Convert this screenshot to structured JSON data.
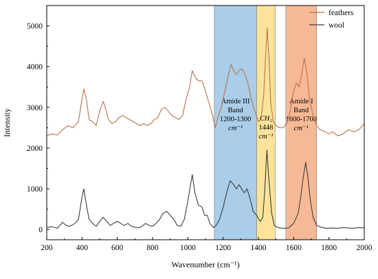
{
  "chart_data": {
    "type": "line",
    "xlabel": "Wavenumber (cm⁻¹)",
    "ylabel": "Intensity",
    "xlim": [
      200,
      2000
    ],
    "ylim": [
      -250,
      5500
    ],
    "x_ticks": [
      "200",
      "400",
      "600",
      "800",
      "1000",
      "1200",
      "1400",
      "1600",
      "1800",
      "2000"
    ],
    "y_ticks": [
      "0",
      "1000",
      "2000",
      "3000",
      "4000",
      "5000"
    ],
    "grid": false,
    "legend_position": "top-right",
    "bands": [
      {
        "x_from": 1150,
        "x_to": 1390,
        "color": "#aacde9",
        "label_lines": [
          "Amide  III",
          "Band",
          "1200-1300",
          "cm⁻¹"
        ]
      },
      {
        "x_from": 1390,
        "x_to": 1495,
        "color": "#fbe39a",
        "label_lines": [
          "CH₂",
          "1448",
          "cm⁻¹"
        ]
      },
      {
        "x_from": 1555,
        "x_to": 1730,
        "color": "#f7b995",
        "label_lines": [
          "Amide  I",
          "Band",
          "1600-1700",
          "cm⁻¹"
        ]
      }
    ],
    "series": [
      {
        "name": "feathers",
        "color": "#b8724a",
        "points": [
          [
            200,
            2300
          ],
          [
            230,
            2350
          ],
          [
            260,
            2320
          ],
          [
            290,
            2450
          ],
          [
            320,
            2550
          ],
          [
            350,
            2500
          ],
          [
            380,
            2650
          ],
          [
            400,
            3200
          ],
          [
            410,
            3450
          ],
          [
            425,
            3200
          ],
          [
            440,
            2700
          ],
          [
            460,
            2650
          ],
          [
            480,
            2550
          ],
          [
            500,
            2900
          ],
          [
            520,
            3150
          ],
          [
            535,
            2950
          ],
          [
            550,
            2700
          ],
          [
            570,
            2600
          ],
          [
            590,
            2650
          ],
          [
            610,
            2750
          ],
          [
            630,
            2800
          ],
          [
            650,
            2750
          ],
          [
            670,
            2700
          ],
          [
            690,
            2650
          ],
          [
            710,
            2600
          ],
          [
            730,
            2550
          ],
          [
            750,
            2600
          ],
          [
            770,
            2550
          ],
          [
            790,
            2600
          ],
          [
            810,
            2700
          ],
          [
            830,
            2750
          ],
          [
            850,
            2950
          ],
          [
            870,
            3000
          ],
          [
            890,
            2900
          ],
          [
            910,
            2800
          ],
          [
            930,
            2750
          ],
          [
            950,
            2700
          ],
          [
            970,
            2800
          ],
          [
            990,
            3200
          ],
          [
            1010,
            3500
          ],
          [
            1025,
            3900
          ],
          [
            1040,
            3750
          ],
          [
            1060,
            3650
          ],
          [
            1080,
            3650
          ],
          [
            1100,
            3400
          ],
          [
            1120,
            3100
          ],
          [
            1140,
            2800
          ],
          [
            1155,
            2500
          ],
          [
            1170,
            2750
          ],
          [
            1190,
            3000
          ],
          [
            1210,
            3400
          ],
          [
            1230,
            3800
          ],
          [
            1245,
            4050
          ],
          [
            1260,
            3900
          ],
          [
            1275,
            3800
          ],
          [
            1290,
            3900
          ],
          [
            1305,
            3950
          ],
          [
            1320,
            3850
          ],
          [
            1340,
            3600
          ],
          [
            1360,
            3200
          ],
          [
            1380,
            2900
          ],
          [
            1400,
            2650
          ],
          [
            1415,
            2700
          ],
          [
            1430,
            3300
          ],
          [
            1440,
            4200
          ],
          [
            1450,
            4950
          ],
          [
            1460,
            4200
          ],
          [
            1470,
            3100
          ],
          [
            1485,
            2650
          ],
          [
            1500,
            2550
          ],
          [
            1520,
            2500
          ],
          [
            1540,
            2500
          ],
          [
            1560,
            2600
          ],
          [
            1580,
            2900
          ],
          [
            1600,
            3400
          ],
          [
            1615,
            3600
          ],
          [
            1630,
            3500
          ],
          [
            1645,
            3800
          ],
          [
            1660,
            4200
          ],
          [
            1675,
            3850
          ],
          [
            1690,
            3200
          ],
          [
            1710,
            2800
          ],
          [
            1730,
            2550
          ],
          [
            1750,
            2450
          ],
          [
            1780,
            2400
          ],
          [
            1800,
            2350
          ],
          [
            1820,
            2400
          ],
          [
            1850,
            2300
          ],
          [
            1880,
            2350
          ],
          [
            1910,
            2450
          ],
          [
            1940,
            2400
          ],
          [
            1970,
            2450
          ],
          [
            2000,
            2600
          ]
        ]
      },
      {
        "name": "wool",
        "color": "#3b3b3b",
        "points": [
          [
            200,
            50
          ],
          [
            230,
            70
          ],
          [
            260,
            30
          ],
          [
            290,
            180
          ],
          [
            310,
            100
          ],
          [
            330,
            80
          ],
          [
            360,
            150
          ],
          [
            380,
            250
          ],
          [
            400,
            800
          ],
          [
            410,
            1000
          ],
          [
            425,
            600
          ],
          [
            440,
            250
          ],
          [
            460,
            150
          ],
          [
            480,
            80
          ],
          [
            500,
            200
          ],
          [
            520,
            300
          ],
          [
            540,
            200
          ],
          [
            560,
            100
          ],
          [
            580,
            150
          ],
          [
            600,
            200
          ],
          [
            620,
            150
          ],
          [
            640,
            100
          ],
          [
            660,
            150
          ],
          [
            680,
            80
          ],
          [
            700,
            60
          ],
          [
            720,
            40
          ],
          [
            740,
            80
          ],
          [
            760,
            150
          ],
          [
            780,
            100
          ],
          [
            800,
            80
          ],
          [
            820,
            150
          ],
          [
            840,
            250
          ],
          [
            860,
            400
          ],
          [
            880,
            450
          ],
          [
            900,
            350
          ],
          [
            920,
            250
          ],
          [
            940,
            100
          ],
          [
            960,
            80
          ],
          [
            980,
            250
          ],
          [
            1000,
            700
          ],
          [
            1015,
            1100
          ],
          [
            1025,
            1350
          ],
          [
            1040,
            900
          ],
          [
            1060,
            600
          ],
          [
            1080,
            550
          ],
          [
            1095,
            350
          ],
          [
            1110,
            350
          ],
          [
            1125,
            150
          ],
          [
            1145,
            50
          ],
          [
            1160,
            100
          ],
          [
            1180,
            250
          ],
          [
            1200,
            550
          ],
          [
            1220,
            900
          ],
          [
            1240,
            1200
          ],
          [
            1260,
            1100
          ],
          [
            1275,
            1000
          ],
          [
            1290,
            1100
          ],
          [
            1305,
            1000
          ],
          [
            1320,
            900
          ],
          [
            1335,
            1000
          ],
          [
            1350,
            800
          ],
          [
            1370,
            450
          ],
          [
            1390,
            350
          ],
          [
            1410,
            200
          ],
          [
            1425,
            300
          ],
          [
            1435,
            900
          ],
          [
            1448,
            1950
          ],
          [
            1460,
            1200
          ],
          [
            1475,
            400
          ],
          [
            1490,
            100
          ],
          [
            1510,
            50
          ],
          [
            1540,
            30
          ],
          [
            1570,
            40
          ],
          [
            1600,
            150
          ],
          [
            1625,
            400
          ],
          [
            1640,
            800
          ],
          [
            1655,
            1300
          ],
          [
            1668,
            1650
          ],
          [
            1680,
            1300
          ],
          [
            1695,
            700
          ],
          [
            1710,
            300
          ],
          [
            1730,
            100
          ],
          [
            1760,
            50
          ],
          [
            1790,
            30
          ],
          [
            1820,
            40
          ],
          [
            1850,
            30
          ],
          [
            1880,
            50
          ],
          [
            1910,
            40
          ],
          [
            1940,
            30
          ],
          [
            1970,
            50
          ],
          [
            2000,
            40
          ]
        ]
      }
    ]
  }
}
